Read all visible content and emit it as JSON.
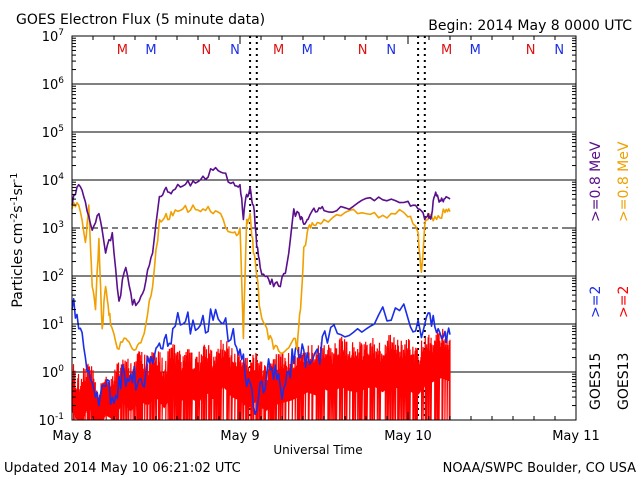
{
  "header": {
    "title": "GOES Electron Flux (5 minute data)",
    "begin": "Begin: 2014 May 8 0000 UTC"
  },
  "footer": {
    "updated": "Updated 2014 May 10 06:21:02 UTC",
    "credit": "NOAA/SWPC Boulder, CO USA"
  },
  "colors": {
    "goes15_08": "#5a0f8c",
    "goes13_08": "#f0a000",
    "goes15_2": "#1a2ee8",
    "goes13_2": "#ff0000",
    "red_marker": "#dd1111",
    "blue_marker": "#1a2ee8",
    "grid": "#000000"
  },
  "chart_data": {
    "type": "line",
    "title": "GOES Electron Flux (5 minute data)",
    "xlabel": "Universal Time",
    "ylabel": "Particles cm-2s-1sr-1",
    "yscale": "log",
    "ylim_exp": [
      -1,
      7
    ],
    "xlim_days": [
      0,
      3
    ],
    "x_ticks": [
      "May 8",
      "May 9",
      "May 10",
      "May 11"
    ],
    "threshold_dashed_exp": 3,
    "day_markers": [
      {
        "label": "M",
        "x": 0.3,
        "color": "red"
      },
      {
        "label": "M",
        "x": 0.47,
        "color": "blue"
      },
      {
        "label": "N",
        "x": 0.8,
        "color": "red"
      },
      {
        "label": "N",
        "x": 0.97,
        "color": "blue"
      },
      {
        "label": "M",
        "x": 1.23,
        "color": "red"
      },
      {
        "label": "M",
        "x": 1.4,
        "color": "blue"
      },
      {
        "label": "N",
        "x": 1.73,
        "color": "red"
      },
      {
        "label": "N",
        "x": 1.9,
        "color": "blue"
      },
      {
        "label": "M",
        "x": 2.23,
        "color": "red"
      },
      {
        "label": "M",
        "x": 2.4,
        "color": "blue"
      },
      {
        "label": "N",
        "x": 2.73,
        "color": "red"
      },
      {
        "label": "N",
        "x": 2.9,
        "color": "blue"
      }
    ],
    "vertical_dotted_days": [
      1.06,
      1.1,
      2.06,
      2.1
    ],
    "legend_right": [
      {
        "label": ">=0.8  MeV",
        "series": "goes15_08"
      },
      {
        "label": ">=0.8  MeV",
        "series": "goes13_08"
      },
      {
        "label": ">=2",
        "series": "goes15_2"
      },
      {
        "label": ">=2",
        "series": "goes13_2"
      },
      {
        "label": "GOES15",
        "series": ""
      },
      {
        "label": "GOES13",
        "series": ""
      }
    ],
    "series": [
      {
        "key": "goes15_08",
        "x": [
          0.0,
          0.04,
          0.08,
          0.12,
          0.16,
          0.2,
          0.24,
          0.28,
          0.32,
          0.36,
          0.4,
          0.44,
          0.48,
          0.52,
          0.56,
          0.6,
          0.66,
          0.72,
          0.78,
          0.84,
          0.9,
          0.96,
          1.0,
          1.02,
          1.04,
          1.06,
          1.08,
          1.1,
          1.12,
          1.16,
          1.2,
          1.24,
          1.28,
          1.32,
          1.36,
          1.38,
          1.4,
          1.42,
          1.46,
          1.5,
          1.6,
          1.7,
          1.8,
          1.9,
          2.0,
          2.06,
          2.1,
          2.12,
          2.14,
          2.16,
          2.18,
          2.2,
          2.22,
          2.25
        ],
        "values": [
          3000,
          8000,
          3500,
          900,
          2000,
          300,
          800,
          30,
          150,
          25,
          30,
          80,
          300,
          4500,
          7000,
          6000,
          7500,
          9500,
          12000,
          16000,
          14000,
          9000,
          8000,
          1500,
          5000,
          7000,
          3000,
          400,
          150,
          100,
          60,
          60,
          180,
          2500,
          1500,
          1200,
          1500,
          2000,
          2200,
          2300,
          2800,
          3300,
          3700,
          4000,
          3600,
          2500,
          1500,
          2000,
          1800,
          4800,
          4200,
          4200,
          4100,
          4000
        ]
      },
      {
        "key": "goes13_08",
        "x": [
          0.0,
          0.04,
          0.08,
          0.1,
          0.12,
          0.14,
          0.16,
          0.18,
          0.2,
          0.22,
          0.24,
          0.28,
          0.32,
          0.36,
          0.4,
          0.44,
          0.48,
          0.52,
          0.56,
          0.6,
          0.66,
          0.72,
          0.78,
          0.84,
          0.9,
          0.96,
          1.0,
          1.02,
          1.04,
          1.06,
          1.08,
          1.1,
          1.12,
          1.16,
          1.2,
          1.24,
          1.28,
          1.32,
          1.34,
          1.36,
          1.38,
          1.4,
          1.42,
          1.46,
          1.5,
          1.6,
          1.7,
          1.8,
          1.9,
          2.0,
          2.06,
          2.08,
          2.1,
          2.12,
          2.14,
          2.18,
          2.22,
          2.25
        ],
        "values": [
          2500,
          3000,
          500,
          3000,
          60,
          20,
          600,
          8,
          60,
          15,
          8,
          3,
          5,
          3,
          4,
          10,
          60,
          1500,
          2000,
          1800,
          2500,
          3000,
          2500,
          2000,
          1500,
          800,
          1000,
          5,
          1500,
          2000,
          300,
          100,
          20,
          8,
          3,
          2.5,
          3,
          5,
          3,
          20,
          400,
          800,
          1000,
          1300,
          1500,
          1800,
          2000,
          2100,
          2000,
          1700,
          800,
          120,
          1200,
          1500,
          1800,
          1800,
          2100,
          2200
        ]
      },
      {
        "key": "goes15_2",
        "x": [
          0.0,
          0.04,
          0.08,
          0.12,
          0.16,
          0.2,
          0.24,
          0.28,
          0.32,
          0.36,
          0.4,
          0.44,
          0.48,
          0.52,
          0.56,
          0.6,
          0.66,
          0.72,
          0.78,
          0.84,
          0.9,
          0.96,
          1.0,
          1.04,
          1.08,
          1.12,
          1.16,
          1.2,
          1.24,
          1.28,
          1.32,
          1.36,
          1.4,
          1.46,
          1.52,
          1.6,
          1.7,
          1.8,
          1.9,
          2.0,
          2.06,
          2.1,
          2.14,
          2.18,
          2.22,
          2.25
        ],
        "values": [
          20,
          8,
          2,
          0.6,
          0.2,
          0.5,
          0.3,
          0.8,
          0.5,
          0.6,
          0.7,
          1.0,
          1.5,
          4,
          6,
          8,
          10,
          12,
          15,
          12,
          10,
          8,
          3,
          0.5,
          0.2,
          0.6,
          1.0,
          0.7,
          0.5,
          1.0,
          1.5,
          2.0,
          2.5,
          3,
          4,
          6,
          8,
          10,
          12,
          13,
          12,
          10,
          9,
          8,
          7,
          6
        ]
      },
      {
        "key": "goes13_2",
        "x": [
          0.0,
          0.05,
          0.1,
          0.15,
          0.2,
          0.25,
          0.3,
          0.35,
          0.4,
          0.45,
          0.5,
          0.55,
          0.6,
          0.65,
          0.7,
          0.75,
          0.8,
          0.85,
          0.9,
          0.95,
          1.0,
          1.05,
          1.1,
          1.15,
          1.2,
          1.25,
          1.3,
          1.35,
          1.4,
          1.45,
          1.5,
          1.55,
          1.6,
          1.65,
          1.7,
          1.75,
          1.8,
          1.85,
          1.9,
          1.95,
          2.0,
          2.05,
          2.1,
          2.15,
          2.2,
          2.25
        ],
        "values": [
          0.6,
          0.3,
          0.8,
          0.2,
          0.5,
          0.4,
          0.9,
          0.6,
          1.0,
          0.8,
          1.2,
          0.7,
          1.5,
          1.0,
          1.2,
          0.9,
          1.5,
          1.0,
          2.0,
          1.2,
          1.0,
          0.7,
          1.0,
          0.6,
          0.8,
          0.9,
          1.0,
          1.2,
          1.5,
          1.3,
          1.8,
          1.4,
          2.0,
          1.6,
          1.5,
          1.8,
          2.0,
          1.5,
          2.5,
          1.6,
          1.8,
          1.2,
          2.0,
          2.5,
          3.0,
          2.5
        ]
      }
    ]
  }
}
